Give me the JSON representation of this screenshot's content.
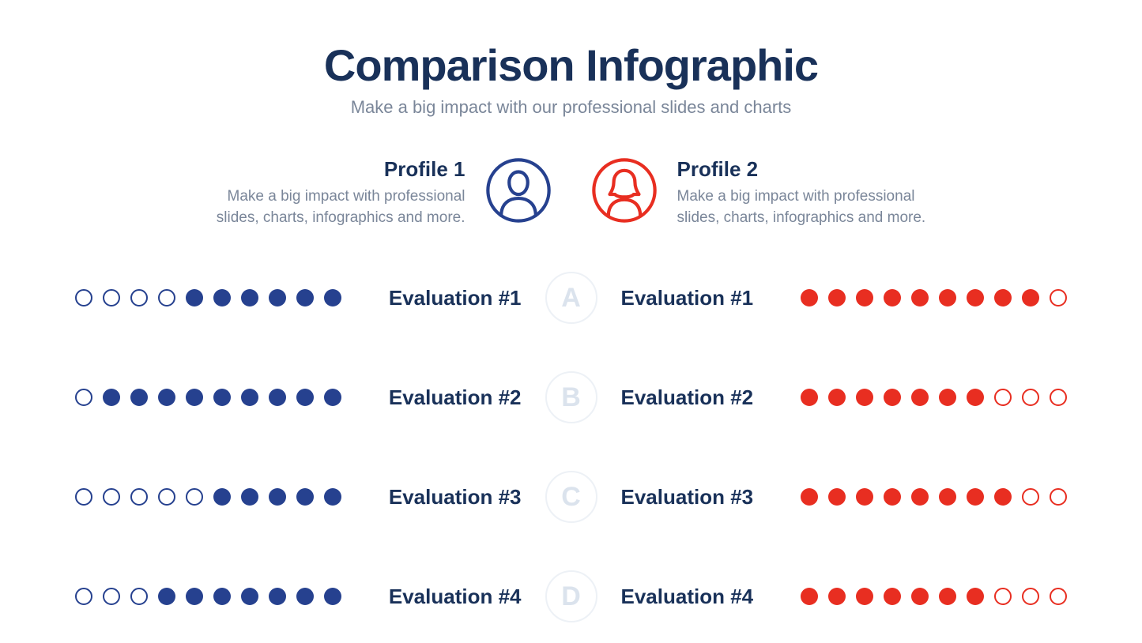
{
  "colors": {
    "title": "#193159",
    "subtitle": "#7a8699",
    "profile1": "#26418f",
    "profile2": "#e82e21",
    "profile_title": "#193159",
    "profile_desc": "#7a8699",
    "eval_label": "#193159",
    "badge_border": "#edf1f6",
    "badge_text": "#dbe3ed",
    "background": "#ffffff"
  },
  "layout": {
    "dot_size": 22,
    "dot_gap": 13,
    "dot_border_width": 2,
    "icon_size": 84,
    "badge_size": 66
  },
  "header": {
    "title": "Comparison Infographic",
    "subtitle": "Make a big impact with our professional slides and charts"
  },
  "profiles": {
    "left": {
      "title": "Profile 1",
      "desc": "Make a big impact with professional slides, charts, infographics and more."
    },
    "right": {
      "title": "Profile 2",
      "desc": "Make a big impact with professional slides, charts, infographics and more."
    }
  },
  "evaluations": [
    {
      "letter": "A",
      "left_label": "Evaluation #1",
      "right_label": "Evaluation #1",
      "left_score": 6,
      "right_score": 9,
      "max": 10
    },
    {
      "letter": "B",
      "left_label": "Evaluation #2",
      "right_label": "Evaluation #2",
      "left_score": 9,
      "right_score": 7,
      "max": 10
    },
    {
      "letter": "C",
      "left_label": "Evaluation #3",
      "right_label": "Evaluation #3",
      "left_score": 5,
      "right_score": 8,
      "max": 10
    },
    {
      "letter": "D",
      "left_label": "Evaluation #4",
      "right_label": "Evaluation #4",
      "left_score": 7,
      "right_score": 7,
      "max": 10
    }
  ]
}
